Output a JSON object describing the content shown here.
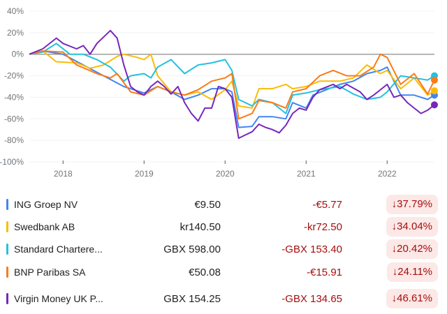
{
  "chart_data": {
    "type": "line",
    "ylim": [
      -100,
      40
    ],
    "yticks": [
      "40%",
      "20%",
      "0%",
      "-20%",
      "-40%",
      "-60%",
      "-80%",
      "-100%"
    ],
    "ytick_values": [
      40,
      20,
      0,
      -20,
      -40,
      -60,
      -80,
      -100
    ],
    "xticks": [
      "2018",
      "2019",
      "2020",
      "2021",
      "2022"
    ],
    "xrange": [
      "2017-08",
      "2022-08"
    ],
    "grid": true,
    "baseline": 0,
    "series": [
      {
        "name": "ING Groep NV",
        "color": "#4285f4",
        "points": [
          [
            "2017-08",
            0
          ],
          [
            "2017-10",
            3
          ],
          [
            "2018-01",
            0
          ],
          [
            "2018-04",
            -10
          ],
          [
            "2018-07",
            -20
          ],
          [
            "2018-10",
            -30
          ],
          [
            "2019-01",
            -36
          ],
          [
            "2019-03",
            -30
          ],
          [
            "2019-05",
            -35
          ],
          [
            "2019-07",
            -42
          ],
          [
            "2019-09",
            -38
          ],
          [
            "2019-11",
            -32
          ],
          [
            "2020-01",
            -32
          ],
          [
            "2020-02",
            -35
          ],
          [
            "2020-03",
            -68
          ],
          [
            "2020-05",
            -67
          ],
          [
            "2020-06",
            -58
          ],
          [
            "2020-08",
            -58
          ],
          [
            "2020-10",
            -60
          ],
          [
            "2020-11",
            -45
          ],
          [
            "2021-01",
            -50
          ],
          [
            "2021-02",
            -38
          ],
          [
            "2021-04",
            -33
          ],
          [
            "2021-06",
            -28
          ],
          [
            "2021-08",
            -25
          ],
          [
            "2021-10",
            -18
          ],
          [
            "2021-12",
            -15
          ],
          [
            "2022-01",
            -12
          ],
          [
            "2022-03",
            -38
          ],
          [
            "2022-05",
            -38
          ],
          [
            "2022-07",
            -42
          ],
          [
            "2022-08",
            -38
          ]
        ]
      },
      {
        "name": "Swedbank AB",
        "color": "#fbbc04",
        "points": [
          [
            "2017-08",
            0
          ],
          [
            "2017-10",
            3
          ],
          [
            "2017-12",
            -7
          ],
          [
            "2018-03",
            -8
          ],
          [
            "2018-05",
            -13
          ],
          [
            "2018-07",
            -10
          ],
          [
            "2018-09",
            -2
          ],
          [
            "2018-10",
            0
          ],
          [
            "2018-12",
            -3
          ],
          [
            "2019-01",
            -5
          ],
          [
            "2019-02",
            0
          ],
          [
            "2019-03",
            -20
          ],
          [
            "2019-05",
            -35
          ],
          [
            "2019-07",
            -38
          ],
          [
            "2019-09",
            -35
          ],
          [
            "2019-11",
            -42
          ],
          [
            "2020-01",
            -33
          ],
          [
            "2020-02",
            -25
          ],
          [
            "2020-03",
            -48
          ],
          [
            "2020-05",
            -50
          ],
          [
            "2020-06",
            -32
          ],
          [
            "2020-08",
            -32
          ],
          [
            "2020-10",
            -28
          ],
          [
            "2020-11",
            -32
          ],
          [
            "2021-01",
            -30
          ],
          [
            "2021-03",
            -25
          ],
          [
            "2021-06",
            -25
          ],
          [
            "2021-08",
            -22
          ],
          [
            "2021-10",
            -10
          ],
          [
            "2021-12",
            -18
          ],
          [
            "2022-01",
            -15
          ],
          [
            "2022-03",
            -32
          ],
          [
            "2022-05",
            -22
          ],
          [
            "2022-07",
            -38
          ],
          [
            "2022-08",
            -34
          ]
        ]
      },
      {
        "name": "Standard Chartered PLC",
        "color": "#24c1e0",
        "points": [
          [
            "2017-08",
            0
          ],
          [
            "2017-10",
            2
          ],
          [
            "2017-12",
            10
          ],
          [
            "2018-02",
            0
          ],
          [
            "2018-04",
            0
          ],
          [
            "2018-06",
            -5
          ],
          [
            "2018-08",
            -12
          ],
          [
            "2018-10",
            -25
          ],
          [
            "2018-11",
            -20
          ],
          [
            "2019-01",
            -18
          ],
          [
            "2019-02",
            -22
          ],
          [
            "2019-03",
            -12
          ],
          [
            "2019-05",
            -5
          ],
          [
            "2019-07",
            -18
          ],
          [
            "2019-09",
            -10
          ],
          [
            "2019-11",
            -8
          ],
          [
            "2020-01",
            -5
          ],
          [
            "2020-02",
            -15
          ],
          [
            "2020-03",
            -42
          ],
          [
            "2020-05",
            -48
          ],
          [
            "2020-06",
            -42
          ],
          [
            "2020-08",
            -45
          ],
          [
            "2020-10",
            -55
          ],
          [
            "2020-11",
            -38
          ],
          [
            "2021-01",
            -36
          ],
          [
            "2021-03",
            -33
          ],
          [
            "2021-06",
            -30
          ],
          [
            "2021-08",
            -37
          ],
          [
            "2021-10",
            -42
          ],
          [
            "2021-12",
            -40
          ],
          [
            "2022-01",
            -35
          ],
          [
            "2022-03",
            -20
          ],
          [
            "2022-05",
            -22
          ],
          [
            "2022-07",
            -24
          ],
          [
            "2022-08",
            -20
          ]
        ]
      },
      {
        "name": "BNP Paribas SA",
        "color": "#fa7b17",
        "points": [
          [
            "2017-08",
            0
          ],
          [
            "2017-10",
            3
          ],
          [
            "2018-01",
            2
          ],
          [
            "2018-03",
            -10
          ],
          [
            "2018-06",
            -18
          ],
          [
            "2018-08",
            -22
          ],
          [
            "2018-09",
            -18
          ],
          [
            "2018-11",
            -35
          ],
          [
            "2019-01",
            -38
          ],
          [
            "2019-03",
            -30
          ],
          [
            "2019-05",
            -35
          ],
          [
            "2019-07",
            -38
          ],
          [
            "2019-09",
            -33
          ],
          [
            "2019-11",
            -25
          ],
          [
            "2020-01",
            -22
          ],
          [
            "2020-02",
            -18
          ],
          [
            "2020-03",
            -60
          ],
          [
            "2020-05",
            -55
          ],
          [
            "2020-06",
            -43
          ],
          [
            "2020-08",
            -45
          ],
          [
            "2020-10",
            -50
          ],
          [
            "2020-11",
            -35
          ],
          [
            "2021-01",
            -32
          ],
          [
            "2021-03",
            -20
          ],
          [
            "2021-05",
            -15
          ],
          [
            "2021-07",
            -20
          ],
          [
            "2021-09",
            -20
          ],
          [
            "2021-11",
            -12
          ],
          [
            "2021-12",
            0
          ],
          [
            "2022-01",
            -3
          ],
          [
            "2022-03",
            -28
          ],
          [
            "2022-05",
            -18
          ],
          [
            "2022-07",
            -37
          ],
          [
            "2022-08",
            -24
          ]
        ]
      },
      {
        "name": "Virgin Money UK PLC",
        "color": "#7627bb",
        "points": [
          [
            "2017-08",
            0
          ],
          [
            "2017-10",
            5
          ],
          [
            "2017-12",
            15
          ],
          [
            "2018-01",
            10
          ],
          [
            "2018-03",
            5
          ],
          [
            "2018-04",
            8
          ],
          [
            "2018-05",
            0
          ],
          [
            "2018-06",
            10
          ],
          [
            "2018-08",
            22
          ],
          [
            "2018-09",
            15
          ],
          [
            "2018-10",
            -10
          ],
          [
            "2018-11",
            -30
          ],
          [
            "2018-12",
            -35
          ],
          [
            "2019-01",
            -38
          ],
          [
            "2019-02",
            -30
          ],
          [
            "2019-03",
            -25
          ],
          [
            "2019-04",
            -30
          ],
          [
            "2019-05",
            -37
          ],
          [
            "2019-06",
            -30
          ],
          [
            "2019-07",
            -45
          ],
          [
            "2019-08",
            -55
          ],
          [
            "2019-09",
            -62
          ],
          [
            "2019-10",
            -50
          ],
          [
            "2019-11",
            -50
          ],
          [
            "2019-12",
            -30
          ],
          [
            "2020-01",
            -32
          ],
          [
            "2020-02",
            -40
          ],
          [
            "2020-03",
            -78
          ],
          [
            "2020-04",
            -75
          ],
          [
            "2020-05",
            -72
          ],
          [
            "2020-06",
            -65
          ],
          [
            "2020-07",
            -68
          ],
          [
            "2020-08",
            -70
          ],
          [
            "2020-09",
            -73
          ],
          [
            "2020-10",
            -66
          ],
          [
            "2020-11",
            -55
          ],
          [
            "2020-12",
            -50
          ],
          [
            "2021-01",
            -52
          ],
          [
            "2021-02",
            -40
          ],
          [
            "2021-03",
            -33
          ],
          [
            "2021-05",
            -28
          ],
          [
            "2021-06",
            -32
          ],
          [
            "2021-07",
            -28
          ],
          [
            "2021-09",
            -35
          ],
          [
            "2021-10",
            -42
          ],
          [
            "2021-11",
            -38
          ],
          [
            "2021-12",
            -33
          ],
          [
            "2022-01",
            -28
          ],
          [
            "2022-02",
            -40
          ],
          [
            "2022-03",
            -38
          ],
          [
            "2022-04",
            -45
          ],
          [
            "2022-05",
            -50
          ],
          [
            "2022-06",
            -55
          ],
          [
            "2022-07",
            -52
          ],
          [
            "2022-08",
            -47
          ]
        ]
      }
    ]
  },
  "table": [
    {
      "name": "ING Groep NV",
      "color": "#4285f4",
      "price": "€9.50",
      "change": "-€5.77",
      "percent": "↓37.79%"
    },
    {
      "name": "Swedbank AB",
      "color": "#fbbc04",
      "price": "kr140.50",
      "change": "-kr72.50",
      "percent": "↓34.04%"
    },
    {
      "name": "Standard Chartere...",
      "color": "#24c1e0",
      "price": "GBX 598.00",
      "change": "-GBX 153.40",
      "percent": "↓20.42%"
    },
    {
      "name": "BNP Paribas SA",
      "color": "#fa7b17",
      "price": "€50.08",
      "change": "-€15.91",
      "percent": "↓24.11%"
    },
    {
      "name": "Virgin Money UK P...",
      "color": "#7627bb",
      "price": "GBX 154.25",
      "change": "-GBX 134.65",
      "percent": "↓46.61%"
    }
  ]
}
